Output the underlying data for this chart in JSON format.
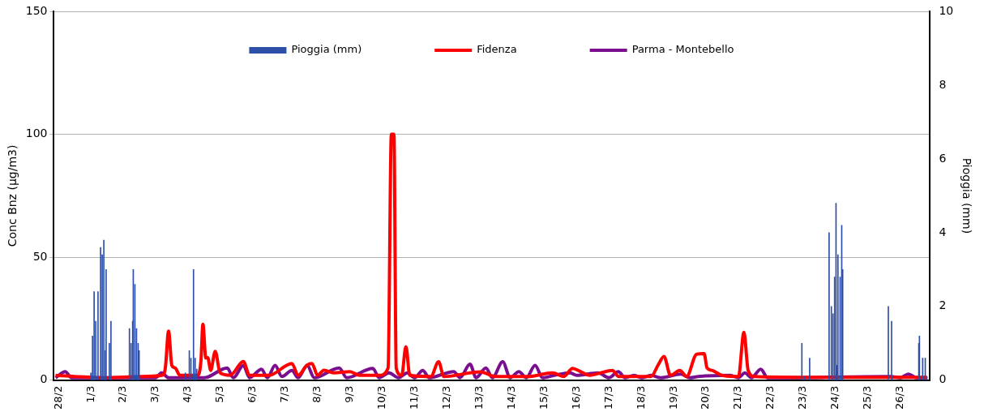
{
  "chart_data": {
    "type": "line",
    "ylabel": "Conc Bnz (µg/m3)",
    "y2label": "Pioggia (mm)",
    "xlim": [
      "--02-27T20:00",
      "--03-26T22:00"
    ],
    "xticks": [
      {
        "value": "--02-28",
        "label": "28/2"
      },
      {
        "value": "--03-01",
        "label": "1/3"
      },
      {
        "value": "--03-02",
        "label": "2/3"
      },
      {
        "value": "--03-03",
        "label": "3/3"
      },
      {
        "value": "--03-04",
        "label": "4/3"
      },
      {
        "value": "--03-05",
        "label": "5/3"
      },
      {
        "value": "--03-06",
        "label": "6/3"
      },
      {
        "value": "--03-07",
        "label": "7/3"
      },
      {
        "value": "--03-08",
        "label": "8/3"
      },
      {
        "value": "--03-09",
        "label": "9/3"
      },
      {
        "value": "--03-10",
        "label": "10/3"
      },
      {
        "value": "--03-11",
        "label": "11/3"
      },
      {
        "value": "--03-12",
        "label": "12/3"
      },
      {
        "value": "--03-13",
        "label": "13/3"
      },
      {
        "value": "--03-14",
        "label": "14/3"
      },
      {
        "value": "--03-15",
        "label": "15/3"
      },
      {
        "value": "--03-16",
        "label": "16/3"
      },
      {
        "value": "--03-17",
        "label": "17/3"
      },
      {
        "value": "--03-18",
        "label": "18/3"
      },
      {
        "value": "--03-19",
        "label": "19/3"
      },
      {
        "value": "--03-20",
        "label": "20/3"
      },
      {
        "value": "--03-21",
        "label": "21/3"
      },
      {
        "value": "--03-22",
        "label": "22/3"
      },
      {
        "value": "--03-23",
        "label": "23/3"
      },
      {
        "value": "--03-24",
        "label": "24/3"
      },
      {
        "value": "--03-25",
        "label": "25/3"
      },
      {
        "value": "--03-26",
        "label": "26/3"
      }
    ],
    "ylim": [
      0,
      150
    ],
    "yticks": [
      0,
      50,
      100,
      150
    ],
    "y2lim": [
      0,
      10
    ],
    "y2ticks": [
      0,
      2,
      4,
      6,
      8,
      10
    ],
    "grid": "y",
    "legend": "top",
    "marker": "none",
    "line_style": "solid",
    "series": [
      {
        "name": "Pioggia (mm)",
        "type": "bar",
        "axis": "y2",
        "color": "#2e4fa8",
        "x": [
          "--03-01T00:00",
          "--03-01T01:12",
          "--03-01T02:24",
          "--03-01T03:36",
          "--03-01T05:17",
          "--03-01T07:12",
          "--03-01T08:24",
          "--03-01T09:36",
          "--03-01T10:48",
          "--03-01T11:17",
          "--03-01T13:41",
          "--03-01T14:53",
          "--03-02T04:34",
          "--03-02T05:46",
          "--03-02T06:58",
          "--03-02T07:26",
          "--03-02T08:38",
          "--03-02T09:50",
          "--03-02T11:02",
          "--03-02T11:46",
          "--03-03T22:05",
          "--03-04T00:58",
          "--03-04T02:10",
          "--03-04T04:05",
          "--03-04T05:17",
          "--03-04T06:29",
          "--03-22T23:02",
          "--03-23T00:43",
          "--03-23T04:48",
          "--03-23T19:12",
          "--03-23T20:53",
          "--03-23T22:05",
          "--03-23T23:17",
          "--03-24T00:20",
          "--03-24T01:00",
          "--03-24T01:45",
          "--03-24T03:22",
          "--03-24T04:34",
          "--03-24T05:17",
          "--03-25T15:07",
          "--03-25T17:31",
          "--03-25T18:00",
          "--03-26T13:41",
          "--03-26T14:10",
          "--03-26T16:34",
          "--03-26T18:29",
          "--03-26T19:41"
        ],
        "values": [
          0.2,
          1.2,
          2.4,
          1.6,
          2.4,
          3.6,
          3.4,
          3.8,
          0.8,
          3.0,
          1.0,
          1.6,
          1.4,
          1.0,
          1.6,
          3.0,
          2.6,
          1.4,
          1.0,
          0.8,
          0.2,
          0.8,
          0.6,
          3.0,
          0.6,
          0.3,
          1.0,
          0.1,
          0.6,
          4.0,
          2.0,
          1.8,
          2.8,
          4.8,
          0.4,
          3.4,
          2.8,
          4.2,
          3.0,
          2.0,
          1.6,
          0.1,
          1.0,
          1.2,
          0.6,
          0.6,
          0.1
        ]
      },
      {
        "name": "Fidenza",
        "color": "#ff0000",
        "x": [
          "--02-27T21:50",
          "--02-28T12:00",
          "--03-01T12:00",
          "--03-02T12:00",
          "--03-03T04:48",
          "--03-03T07:12",
          "--03-03T09:36",
          "--03-03T12:00",
          "--03-03T14:24",
          "--03-03T18:00",
          "--03-04T07:12",
          "--03-04T09:36",
          "--03-04T11:02",
          "--03-04T13:12",
          "--03-04T14:38",
          "--03-04T16:48",
          "--03-04T20:10",
          "--03-04T23:46",
          "--03-05T07:12",
          "--03-05T17:02",
          "--03-05T21:36",
          "--03-06T12:00",
          "--03-07T05:02",
          "--03-07T09:36",
          "--03-07T16:19",
          "--03-07T19:55",
          "--03-08T00:00",
          "--03-08T04:48",
          "--03-08T12:00",
          "--03-09T00:00",
          "--03-09T07:12",
          "--03-09T21:36",
          "--03-10T04:19",
          "--03-10T06:43",
          "--03-10T08:38",
          "--03-10T10:19",
          "--03-10T14:24",
          "--03-10T17:31",
          "--03-10T20:24",
          "--03-11T12:00",
          "--03-11T17:46",
          "--03-11T21:36",
          "--03-13T00:43",
          "--03-13T12:00",
          "--03-14T12:00",
          "--03-15T06:14",
          "--03-15T14:24",
          "--03-15T21:07",
          "--03-16T02:53",
          "--03-16T09:36",
          "--03-17T02:38",
          "--03-17T07:12",
          "--03-18T07:12",
          "--03-18T12:29",
          "--03-18T16:48",
          "--03-18T21:36",
          "--03-19T04:34",
          "--03-19T09:36",
          "--03-19T17:02",
          "--03-19T22:34",
          "--03-20T00:43",
          "--03-20T04:19",
          "--03-20T12:00",
          "--03-21T00:00",
          "--03-21T04:05",
          "--03-21T07:12",
          "--03-21T12:00",
          "--03-23T00:00",
          "--03-25T00:00",
          "--03-26T19:41"
        ],
        "values": [
          2,
          1.5,
          1,
          1.5,
          2,
          5,
          20,
          6,
          5,
          2,
          2,
          8,
          22.8,
          9,
          9.2,
          4,
          11.7,
          3,
          2,
          7.6,
          2,
          2,
          6.8,
          2,
          6.2,
          6.8,
          2,
          4.1,
          3,
          3.5,
          2,
          2,
          5,
          100,
          100,
          5,
          2,
          13.6,
          2,
          1.5,
          7.5,
          1.5,
          3.4,
          1.5,
          1.5,
          3,
          1.5,
          4.8,
          3.5,
          2,
          4,
          1.5,
          1.5,
          6.2,
          9.7,
          2,
          4,
          1.5,
          10.6,
          10.8,
          5,
          4,
          2,
          1.5,
          19.5,
          4,
          1.5,
          1.2,
          1.2,
          1.2
        ]
      },
      {
        "name": "Parma - Montebello",
        "color": "#7b0d8f",
        "x": [
          "--02-27T21:50",
          "--02-28T05:02",
          "--02-28T09:36",
          "--03-03T00:00",
          "--03-03T04:19",
          "--03-03T09:36",
          "--03-04T12:00",
          "--03-05T05:02",
          "--03-05T09:36",
          "--03-05T17:02",
          "--03-05T21:36",
          "--03-06T06:29",
          "--03-06T10:48",
          "--03-06T16:34",
          "--03-06T21:36",
          "--03-07T05:02",
          "--03-07T09:36",
          "--03-07T16:19",
          "--03-07T21:36",
          "--03-08T16:05",
          "--03-08T21:36",
          "--03-09T17:02",
          "--03-09T21:36",
          "--03-10T05:02",
          "--03-10T12:00",
          "--03-10T18:29",
          "--03-11T00:00",
          "--03-11T06:00",
          "--03-11T10:48",
          "--03-12T05:02",
          "--03-12T09:36",
          "--03-12T17:02",
          "--03-12T21:36",
          "--03-13T04:48",
          "--03-13T09:36",
          "--03-13T17:17",
          "--03-13T22:48",
          "--03-14T05:17",
          "--03-14T10:48",
          "--03-14T17:17",
          "--03-14T22:48",
          "--03-15T07:26",
          "--03-15T19:12",
          "--03-16T00:00",
          "--03-16T16:05",
          "--03-17T00:00",
          "--03-17T06:58",
          "--03-17T12:00",
          "--03-17T18:43",
          "--03-18T00:00",
          "--03-18T07:12",
          "--03-18T14:24",
          "--03-19T05:17",
          "--03-19T12:00",
          "--03-19T18:14",
          "--03-20T18:00",
          "--03-21T00:00",
          "--03-21T04:48",
          "--03-21T09:36",
          "--03-21T16:34",
          "--03-21T21:36",
          "--03-22T04:34",
          "--03-25T16:48",
          "--03-26T00:00",
          "--03-26T06:00",
          "--03-26T12:00",
          "--03-26T19:41"
        ],
        "values": [
          1,
          3.5,
          1,
          1,
          3,
          1,
          1,
          5,
          1,
          6,
          1,
          4.5,
          1,
          6,
          1.5,
          4,
          1,
          6,
          1,
          5,
          1,
          4.8,
          1,
          3,
          1,
          3,
          1,
          4,
          1,
          3.5,
          1,
          6.5,
          1,
          5,
          1,
          7.5,
          1,
          3.5,
          1,
          6,
          1,
          2,
          3,
          2,
          3,
          1,
          3.5,
          1,
          2,
          1,
          2,
          1,
          2.5,
          1,
          1.5,
          2,
          1,
          3,
          1,
          4.5,
          1,
          1,
          1.5,
          1,
          2.5,
          1,
          1
        ]
      }
    ]
  }
}
